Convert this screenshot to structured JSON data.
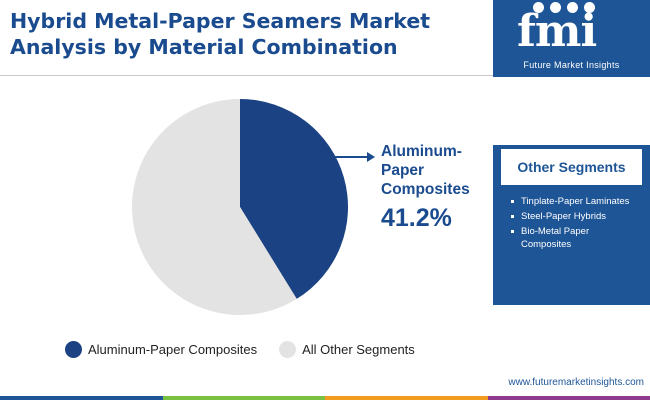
{
  "header": {
    "title_line1": "Hybrid Metal-Paper Seamers Market",
    "title_line2": "Analysis by Material Combination"
  },
  "brand": {
    "logo_text": "fmi",
    "name": "Future Market Insights",
    "url": "www.futuremarketinsights.com",
    "color": "#1e5596"
  },
  "callout": {
    "label": "Aluminum-Paper Composites",
    "value": "41.2%"
  },
  "sidebar": {
    "heading": "Other Segments",
    "items": [
      "Tinplate-Paper Laminates",
      "Steel-Paper Hybrids",
      "Bio-Metal Paper Composites"
    ]
  },
  "chart_data": {
    "type": "pie",
    "title": "",
    "slices": [
      {
        "name": "Aluminum-Paper Composites",
        "value": 41.2,
        "color": "#1b4282"
      },
      {
        "name": "All Other Segments",
        "value": 58.8,
        "color": "#e3e3e3"
      }
    ],
    "legend_placement": "bottom",
    "start_angle": "12 o'clock",
    "direction": "clockwise"
  },
  "legend": {
    "items": [
      {
        "label": "Aluminum-Paper Composites",
        "color": "#1b4282"
      },
      {
        "label": "All Other Segments",
        "color": "#e3e3e3"
      }
    ]
  },
  "footer_bar_colors": [
    "#1e5596",
    "#7ac043",
    "#f29c1f",
    "#8e3a8f"
  ]
}
